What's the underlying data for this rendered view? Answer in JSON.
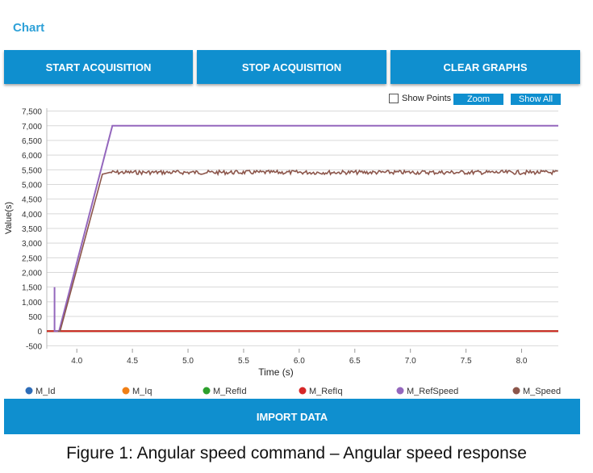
{
  "header": {
    "title": "Chart"
  },
  "toolbar": {
    "start_label": "START ACQUISITION",
    "stop_label": "STOP ACQUISITION",
    "clear_label": "CLEAR GRAPHS"
  },
  "chart_controls": {
    "show_points_label": "Show Points",
    "show_points_checked": false,
    "zoom_label": "Zoom",
    "show_all_label": "Show All"
  },
  "import_label": "IMPORT DATA",
  "caption": "Figure 1: Angular speed command – Angular speed response",
  "colors": {
    "accent": "#0f8fcf",
    "title": "#2ea1d8"
  },
  "chart_data": {
    "type": "line",
    "xlabel": "Time (s)",
    "ylabel": "Value(s)",
    "xlim": [
      3.73,
      8.33
    ],
    "ylim": [
      -600,
      7600
    ],
    "x_ticks": [
      "4.0",
      "4.5",
      "5.0",
      "5.5",
      "6.0",
      "6.5",
      "7.0",
      "7.5",
      "8.0"
    ],
    "x_tick_values": [
      4.0,
      4.5,
      5.0,
      5.5,
      6.0,
      6.5,
      7.0,
      7.5,
      8.0
    ],
    "y_ticks": [
      "7,500",
      "7,000",
      "6,500",
      "6,000",
      "5,500",
      "5,000",
      "4,500",
      "4,000",
      "3,500",
      "3,000",
      "2,500",
      "2,000",
      "1,500",
      "1,000",
      "500",
      "0",
      "-500"
    ],
    "y_tick_values": [
      7500,
      7000,
      6500,
      6000,
      5500,
      5000,
      4500,
      4000,
      3500,
      3000,
      2500,
      2000,
      1500,
      1000,
      500,
      0,
      -500
    ],
    "grid": true,
    "legend_position": "bottom",
    "series": [
      {
        "name": "M_Id",
        "color": "#2e6db8",
        "x": [
          3.73,
          8.33
        ],
        "y": [
          0,
          0
        ]
      },
      {
        "name": "M_Iq",
        "color": "#f07f16",
        "x": [
          3.73,
          8.33
        ],
        "y": [
          0,
          0
        ]
      },
      {
        "name": "M_RefId",
        "color": "#2ca02c",
        "x": [
          3.73,
          8.33
        ],
        "y": [
          0,
          0
        ]
      },
      {
        "name": "M_RefIq",
        "color": "#d62728",
        "x": [
          3.73,
          8.33
        ],
        "y": [
          0,
          0
        ]
      },
      {
        "name": "M_RefSpeed",
        "color": "#9467bd",
        "x": [
          3.8,
          3.8,
          3.81,
          3.84,
          4.32,
          8.33
        ],
        "y": [
          1500,
          0,
          0,
          0,
          7000,
          7000
        ]
      },
      {
        "name": "M_Speed",
        "color": "#8c564b",
        "x": [
          3.83,
          3.85,
          4.23,
          4.3,
          8.33
        ],
        "y": [
          -10,
          0,
          5350,
          5400,
          5420
        ]
      }
    ]
  }
}
